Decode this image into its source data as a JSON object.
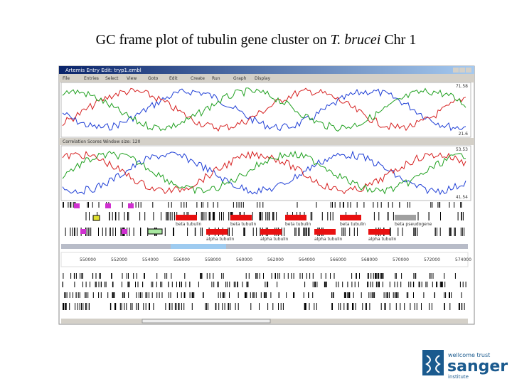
{
  "slide": {
    "title": {
      "before": "GC frame plot of tubulin gene cluster on ",
      "italic": "T. brucei",
      "after": " Chr 1"
    }
  },
  "window": {
    "title": "Artemis Entry Edit: tryp1.embl",
    "menu": [
      "File",
      "Entries",
      "Select",
      "View",
      "Goto",
      "Edit",
      "Create",
      "Run",
      "Graph",
      "Display"
    ],
    "plot1": {
      "max": "71.58",
      "min": "21.6"
    },
    "plot2": {
      "header": "Correlation Scores   Window size: 120",
      "max": "53.53",
      "min": "41.54"
    },
    "genes_top": [
      "beta tubulin",
      "beta tubulin",
      "beta tubulin",
      "beta tubulin",
      "beta pseudogene"
    ],
    "genes_bottom": [
      "alpha tubulin",
      "alpha tubulin",
      "alpha tubulin",
      "alpha tubulin"
    ],
    "ruler": [
      "550000",
      "552000",
      "554000",
      "556000",
      "558000",
      "560000",
      "562000",
      "564000",
      "566000",
      "568000",
      "570000",
      "572000",
      "574000"
    ]
  },
  "logo": {
    "line1": "wellcome trust",
    "line2": "sanger",
    "line3": "institute"
  }
}
